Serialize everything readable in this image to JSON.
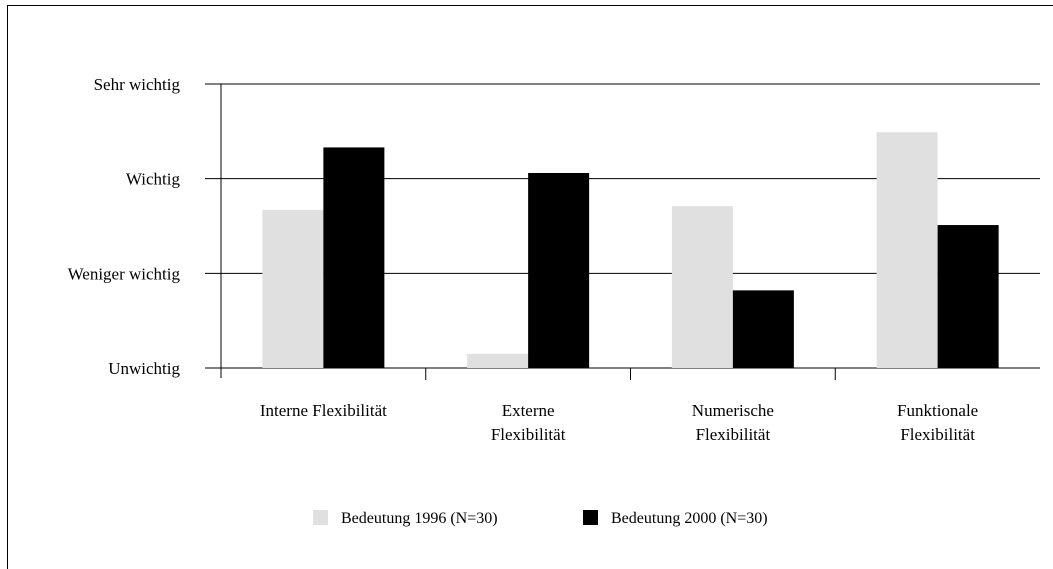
{
  "chart_data": {
    "type": "bar",
    "categories": [
      [
        "Interne Flexibilität"
      ],
      [
        "Externe",
        "Flexibilität"
      ],
      [
        "Numerische",
        "Flexibilität"
      ],
      [
        "Funktionale",
        "Flexibilität"
      ]
    ],
    "yticks": [
      "Unwichtig",
      "Weniger  wichtig",
      "Wichtig",
      "Sehr wichtig"
    ],
    "ylim": [
      0,
      3
    ],
    "grid": true,
    "legend_position": "bottom",
    "series": [
      {
        "name": "Bedeutung 1996 (N=30)",
        "color": "#e0e0e0",
        "values": [
          1.67,
          0.15,
          1.71,
          2.49
        ]
      },
      {
        "name": "Bedeutung 2000 (N=30)",
        "color": "#000000",
        "values": [
          2.33,
          2.06,
          0.82,
          1.51
        ]
      }
    ]
  }
}
